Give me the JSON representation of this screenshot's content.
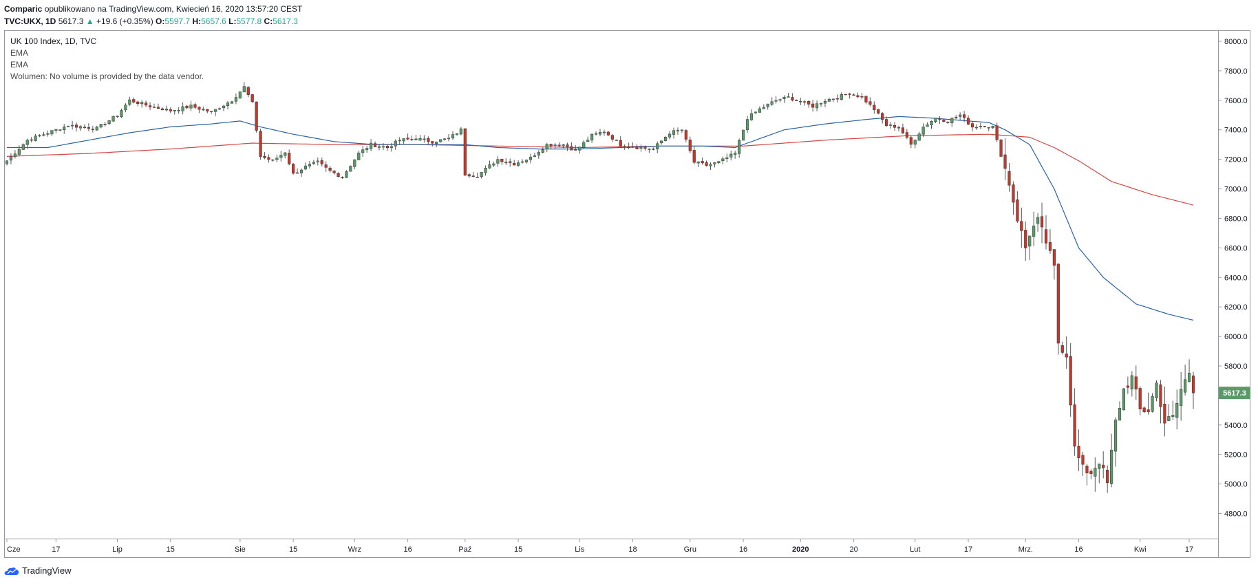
{
  "header": {
    "author": "Comparic",
    "published": "opublikowano na TradingView.com, Kwiecień 16, 2020 13:57:20 CEST",
    "symbol": "TVC:UKX, 1D",
    "last": "5617.3",
    "arrow": "▲",
    "change": "+19.6 (+0.35%)",
    "o_label": "O:",
    "o_value": "5597.7",
    "h_label": "H:",
    "h_value": "5657.6",
    "l_label": "L:",
    "l_value": "5577.8",
    "c_label": "C:",
    "c_value": "5617.3"
  },
  "legend": {
    "title": "UK 100 Index, 1D, TVC",
    "ema1": "EMA",
    "ema2": "EMA",
    "volume": "Wolumen: No volume is provided by the data vendor."
  },
  "footer": {
    "brand": "TradingView",
    "logo_icon": "tradingview-cloud-icon"
  },
  "colors": {
    "up": "#5b9a68",
    "down": "#c0392b",
    "ema_fast": "#2962a8",
    "ema_slow": "#d64541",
    "price_badge": "#5b9a68"
  },
  "chart_data": {
    "type": "candlestick",
    "y_ticks": [
      "8000.0",
      "7800.0",
      "7600.0",
      "7400.0",
      "7200.0",
      "7000.0",
      "6800.0",
      "6600.0",
      "6400.0",
      "6200.0",
      "6000.0",
      "5800.0",
      "5600.0",
      "5400.0",
      "5200.0",
      "5000.0",
      "4800.0"
    ],
    "ylim": [
      4630,
      8070
    ],
    "x_labels": [
      "Cze",
      "17",
      "Lip",
      "15",
      "Sie",
      "15",
      "Wrz",
      "16",
      "Paź",
      "15",
      "Lis",
      "18",
      "Gru",
      "16",
      "2020",
      "20",
      "Lut",
      "17",
      "Mrz.",
      "16",
      "Kwi",
      "17"
    ],
    "x_label_days": [
      0,
      12,
      27,
      40,
      57,
      70,
      85,
      98,
      112,
      125,
      140,
      153,
      167,
      180,
      194,
      207,
      222,
      235,
      249,
      262,
      277,
      289
    ],
    "last_price_label": "5617.3",
    "last_price": 5617.3,
    "anchors": [
      [
        0,
        7190
      ],
      [
        5,
        7330
      ],
      [
        10,
        7380
      ],
      [
        15,
        7430
      ],
      [
        22,
        7410
      ],
      [
        27,
        7500
      ],
      [
        30,
        7600
      ],
      [
        35,
        7560
      ],
      [
        40,
        7530
      ],
      [
        45,
        7560
      ],
      [
        50,
        7520
      ],
      [
        55,
        7600
      ],
      [
        58,
        7690
      ],
      [
        60,
        7580
      ],
      [
        62,
        7220
      ],
      [
        65,
        7190
      ],
      [
        68,
        7250
      ],
      [
        70,
        7100
      ],
      [
        73,
        7150
      ],
      [
        76,
        7180
      ],
      [
        79,
        7120
      ],
      [
        82,
        7080
      ],
      [
        86,
        7240
      ],
      [
        89,
        7300
      ],
      [
        93,
        7280
      ],
      [
        96,
        7330
      ],
      [
        100,
        7340
      ],
      [
        104,
        7320
      ],
      [
        108,
        7340
      ],
      [
        111,
        7400
      ],
      [
        112,
        7100
      ],
      [
        115,
        7090
      ],
      [
        120,
        7200
      ],
      [
        124,
        7170
      ],
      [
        128,
        7210
      ],
      [
        132,
        7300
      ],
      [
        136,
        7300
      ],
      [
        139,
        7260
      ],
      [
        143,
        7360
      ],
      [
        146,
        7390
      ],
      [
        150,
        7300
      ],
      [
        154,
        7280
      ],
      [
        158,
        7270
      ],
      [
        162,
        7380
      ],
      [
        165,
        7400
      ],
      [
        168,
        7180
      ],
      [
        171,
        7160
      ],
      [
        174,
        7180
      ],
      [
        178,
        7240
      ],
      [
        181,
        7480
      ],
      [
        184,
        7540
      ],
      [
        188,
        7600
      ],
      [
        191,
        7620
      ],
      [
        194,
        7590
      ],
      [
        197,
        7560
      ],
      [
        200,
        7600
      ],
      [
        203,
        7620
      ],
      [
        206,
        7650
      ],
      [
        209,
        7620
      ],
      [
        212,
        7540
      ],
      [
        215,
        7430
      ],
      [
        218,
        7420
      ],
      [
        221,
        7300
      ],
      [
        224,
        7420
      ],
      [
        227,
        7480
      ],
      [
        230,
        7460
      ],
      [
        233,
        7500
      ],
      [
        236,
        7420
      ],
      [
        239,
        7430
      ],
      [
        241,
        7420
      ],
      [
        243,
        7230
      ],
      [
        245,
        7040
      ],
      [
        247,
        6800
      ],
      [
        249,
        6600
      ],
      [
        250,
        6700
      ],
      [
        252,
        6780
      ],
      [
        254,
        6640
      ],
      [
        256,
        6460
      ],
      [
        257,
        5960
      ],
      [
        259,
        5880
      ],
      [
        261,
        5240
      ],
      [
        263,
        5100
      ],
      [
        265,
        5080
      ],
      [
        267,
        5160
      ],
      [
        269,
        5000
      ],
      [
        271,
        5420
      ],
      [
        273,
        5640
      ],
      [
        275,
        5720
      ],
      [
        277,
        5500
      ],
      [
        279,
        5500
      ],
      [
        281,
        5680
      ],
      [
        283,
        5420
      ],
      [
        285,
        5450
      ],
      [
        287,
        5640
      ],
      [
        289,
        5760
      ],
      [
        290,
        5617
      ]
    ],
    "candles": 291,
    "ema_fast": [
      [
        0,
        7280
      ],
      [
        10,
        7280
      ],
      [
        20,
        7330
      ],
      [
        30,
        7380
      ],
      [
        40,
        7420
      ],
      [
        50,
        7440
      ],
      [
        57,
        7460
      ],
      [
        62,
        7420
      ],
      [
        70,
        7370
      ],
      [
        80,
        7320
      ],
      [
        90,
        7300
      ],
      [
        100,
        7300
      ],
      [
        112,
        7300
      ],
      [
        120,
        7280
      ],
      [
        130,
        7270
      ],
      [
        140,
        7270
      ],
      [
        150,
        7280
      ],
      [
        160,
        7290
      ],
      [
        170,
        7290
      ],
      [
        178,
        7280
      ],
      [
        182,
        7320
      ],
      [
        190,
        7400
      ],
      [
        200,
        7440
      ],
      [
        210,
        7470
      ],
      [
        218,
        7490
      ],
      [
        226,
        7480
      ],
      [
        235,
        7460
      ],
      [
        240,
        7450
      ],
      [
        244,
        7400
      ],
      [
        250,
        7300
      ],
      [
        256,
        7000
      ],
      [
        262,
        6600
      ],
      [
        268,
        6400
      ],
      [
        276,
        6220
      ],
      [
        284,
        6150
      ],
      [
        290,
        6110
      ]
    ],
    "ema_slow": [
      [
        0,
        7220
      ],
      [
        20,
        7240
      ],
      [
        40,
        7270
      ],
      [
        60,
        7310
      ],
      [
        80,
        7300
      ],
      [
        100,
        7300
      ],
      [
        120,
        7290
      ],
      [
        140,
        7280
      ],
      [
        160,
        7290
      ],
      [
        180,
        7290
      ],
      [
        200,
        7330
      ],
      [
        220,
        7360
      ],
      [
        240,
        7370
      ],
      [
        250,
        7350
      ],
      [
        256,
        7280
      ],
      [
        262,
        7190
      ],
      [
        270,
        7050
      ],
      [
        280,
        6960
      ],
      [
        290,
        6890
      ]
    ]
  }
}
